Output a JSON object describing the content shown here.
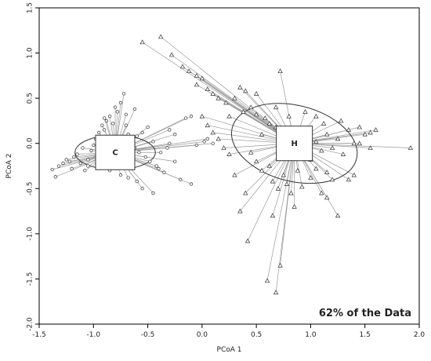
{
  "chart_data": {
    "type": "scatter",
    "title": "",
    "xlabel": "PCoA 1",
    "ylabel": "PCoA 2",
    "xlim": [
      -1.5,
      2.0
    ],
    "ylim": [
      -2.0,
      1.5
    ],
    "xticks": [
      -1.5,
      -1.0,
      -0.5,
      0.0,
      0.5,
      1.0,
      1.5,
      2.0
    ],
    "yticks": [
      -2.0,
      -1.5,
      -1.0,
      -0.5,
      0.0,
      0.5,
      1.0,
      1.5
    ],
    "xtick_labels": [
      "-1.5",
      "-1.0",
      "-0.5",
      "0.0",
      "0.5",
      "1.0",
      "1.5",
      "2.0"
    ],
    "ytick_labels": [
      "-2.0",
      "-1.5",
      "-1.0",
      "-0.5",
      "0.0",
      "0.5",
      "1.0",
      "1.5"
    ],
    "annotation": "62% of the Data",
    "groups": [
      {
        "label": "C",
        "marker": "circle",
        "centroid": [
          -0.8,
          -0.1
        ],
        "ellipse": {
          "center": [
            -0.8,
            -0.1
          ],
          "rx": 0.37,
          "ry": 0.19,
          "rotation_deg": 0
        },
        "points": [
          [
            -1.38,
            -0.29
          ],
          [
            -1.35,
            -0.37
          ],
          [
            -1.32,
            -0.25
          ],
          [
            -1.28,
            -0.22
          ],
          [
            -1.25,
            -0.18
          ],
          [
            -1.22,
            -0.2
          ],
          [
            -1.2,
            -0.28
          ],
          [
            -1.18,
            -0.15
          ],
          [
            -1.15,
            -0.12
          ],
          [
            -1.12,
            -0.22
          ],
          [
            -1.1,
            -0.05
          ],
          [
            -1.08,
            -0.3
          ],
          [
            -1.05,
            -0.18
          ],
          [
            -1.02,
            -0.08
          ],
          [
            -1.0,
            -0.02
          ],
          [
            -0.98,
            0.05
          ],
          [
            -0.95,
            0.12
          ],
          [
            -0.92,
            0.2
          ],
          [
            -0.9,
            0.15
          ],
          [
            -0.88,
            0.25
          ],
          [
            -0.85,
            0.3
          ],
          [
            -0.82,
            0.22
          ],
          [
            -0.8,
            0.4
          ],
          [
            -0.78,
            0.35
          ],
          [
            -0.75,
            0.45
          ],
          [
            -0.72,
            0.55
          ],
          [
            -0.7,
            0.2
          ],
          [
            -0.68,
            0.1
          ],
          [
            -0.65,
            0.05
          ],
          [
            -0.62,
            -0.05
          ],
          [
            -0.6,
            0.08
          ],
          [
            -0.58,
            -0.1
          ],
          [
            -0.55,
            0.12
          ],
          [
            -0.52,
            -0.15
          ],
          [
            -0.5,
            0.18
          ],
          [
            -0.48,
            -0.2
          ],
          [
            -0.45,
            0.02
          ],
          [
            -0.42,
            -0.25
          ],
          [
            -0.4,
            -0.28
          ],
          [
            -0.38,
            -0.1
          ],
          [
            -0.35,
            -0.32
          ],
          [
            -0.32,
            -0.05
          ],
          [
            -0.3,
            0.0
          ],
          [
            -0.25,
            0.1
          ],
          [
            -0.2,
            -0.4
          ],
          [
            -0.15,
            0.28
          ],
          [
            -0.1,
            -0.45
          ],
          [
            -0.05,
            -0.02
          ],
          [
            0.02,
            0.02
          ],
          [
            0.05,
            0.05
          ],
          [
            0.1,
            0.0
          ],
          [
            -0.6,
            -0.42
          ],
          [
            -0.55,
            -0.5
          ],
          [
            -0.45,
            -0.55
          ],
          [
            -0.75,
            -0.35
          ],
          [
            -0.85,
            -0.3
          ],
          [
            -0.68,
            -0.38
          ],
          [
            -0.9,
            0.28
          ],
          [
            -0.7,
            0.32
          ],
          [
            -0.62,
            0.38
          ],
          [
            -0.1,
            0.3
          ],
          [
            -0.95,
            -0.15
          ],
          [
            -1.05,
            -0.25
          ],
          [
            -0.3,
            0.15
          ],
          [
            -0.25,
            -0.2
          ]
        ]
      },
      {
        "label": "H",
        "marker": "triangle",
        "centroid": [
          0.85,
          0.0
        ],
        "ellipse": {
          "center": [
            0.85,
            0.0
          ],
          "rx": 0.59,
          "ry": 0.42,
          "rotation_deg": 14
        },
        "points": [
          [
            -0.55,
            1.12
          ],
          [
            -0.38,
            1.18
          ],
          [
            -0.28,
            0.98
          ],
          [
            -0.18,
            0.85
          ],
          [
            -0.12,
            0.8
          ],
          [
            -0.05,
            0.75
          ],
          [
            0.0,
            0.72
          ],
          [
            -0.05,
            0.65
          ],
          [
            0.05,
            0.6
          ],
          [
            0.1,
            0.55
          ],
          [
            0.15,
            0.5
          ],
          [
            0.22,
            0.45
          ],
          [
            0.3,
            0.5
          ],
          [
            0.35,
            0.62
          ],
          [
            0.72,
            0.8
          ],
          [
            0.45,
            0.4
          ],
          [
            0.5,
            0.32
          ],
          [
            0.58,
            0.28
          ],
          [
            0.62,
            0.22
          ],
          [
            0.68,
            0.18
          ],
          [
            0.72,
            0.1
          ],
          [
            0.78,
            0.05
          ],
          [
            0.85,
            0.02
          ],
          [
            0.9,
            -0.05
          ],
          [
            0.95,
            0.08
          ],
          [
            1.0,
            0.12
          ],
          [
            1.05,
            0.02
          ],
          [
            1.1,
            -0.08
          ],
          [
            1.15,
            0.1
          ],
          [
            1.2,
            -0.05
          ],
          [
            1.25,
            0.05
          ],
          [
            1.3,
            -0.12
          ],
          [
            1.35,
            0.15
          ],
          [
            1.4,
            0.0
          ],
          [
            1.45,
            0.18
          ],
          [
            1.5,
            0.1
          ],
          [
            1.55,
            -0.05
          ],
          [
            1.6,
            0.15
          ],
          [
            1.92,
            -0.05
          ],
          [
            1.2,
            -0.4
          ],
          [
            1.15,
            -0.32
          ],
          [
            1.1,
            -0.55
          ],
          [
            1.05,
            -0.28
          ],
          [
            1.0,
            -0.38
          ],
          [
            0.92,
            -0.48
          ],
          [
            0.88,
            -0.3
          ],
          [
            0.82,
            -0.55
          ],
          [
            0.75,
            -0.35
          ],
          [
            0.7,
            -0.5
          ],
          [
            0.65,
            -0.42
          ],
          [
            0.62,
            -0.25
          ],
          [
            0.55,
            -0.3
          ],
          [
            0.5,
            -0.2
          ],
          [
            0.45,
            -0.1
          ],
          [
            0.4,
            -0.55
          ],
          [
            0.35,
            -0.75
          ],
          [
            0.3,
            -0.35
          ],
          [
            0.25,
            -0.12
          ],
          [
            0.2,
            -0.05
          ],
          [
            0.15,
            0.05
          ],
          [
            0.1,
            0.12
          ],
          [
            0.05,
            0.2
          ],
          [
            0.0,
            0.3
          ],
          [
            0.6,
            -1.52
          ],
          [
            0.68,
            -1.65
          ],
          [
            0.72,
            -1.35
          ],
          [
            0.42,
            -1.08
          ],
          [
            0.65,
            -0.8
          ],
          [
            0.78,
            -0.45
          ],
          [
            0.85,
            -0.7
          ],
          [
            1.15,
            -0.6
          ],
          [
            1.25,
            -0.8
          ],
          [
            1.35,
            -0.4
          ],
          [
            1.4,
            -0.35
          ],
          [
            0.4,
            0.58
          ],
          [
            0.55,
            0.1
          ],
          [
            0.68,
            0.4
          ],
          [
            0.8,
            0.3
          ],
          [
            0.95,
            0.35
          ],
          [
            1.05,
            0.3
          ],
          [
            1.12,
            0.22
          ],
          [
            1.28,
            0.25
          ],
          [
            1.45,
            0.0
          ],
          [
            1.55,
            0.12
          ],
          [
            0.38,
            0.35
          ],
          [
            0.5,
            0.55
          ],
          [
            0.25,
            0.3
          ],
          [
            1.0,
            -0.18
          ]
        ]
      }
    ]
  }
}
